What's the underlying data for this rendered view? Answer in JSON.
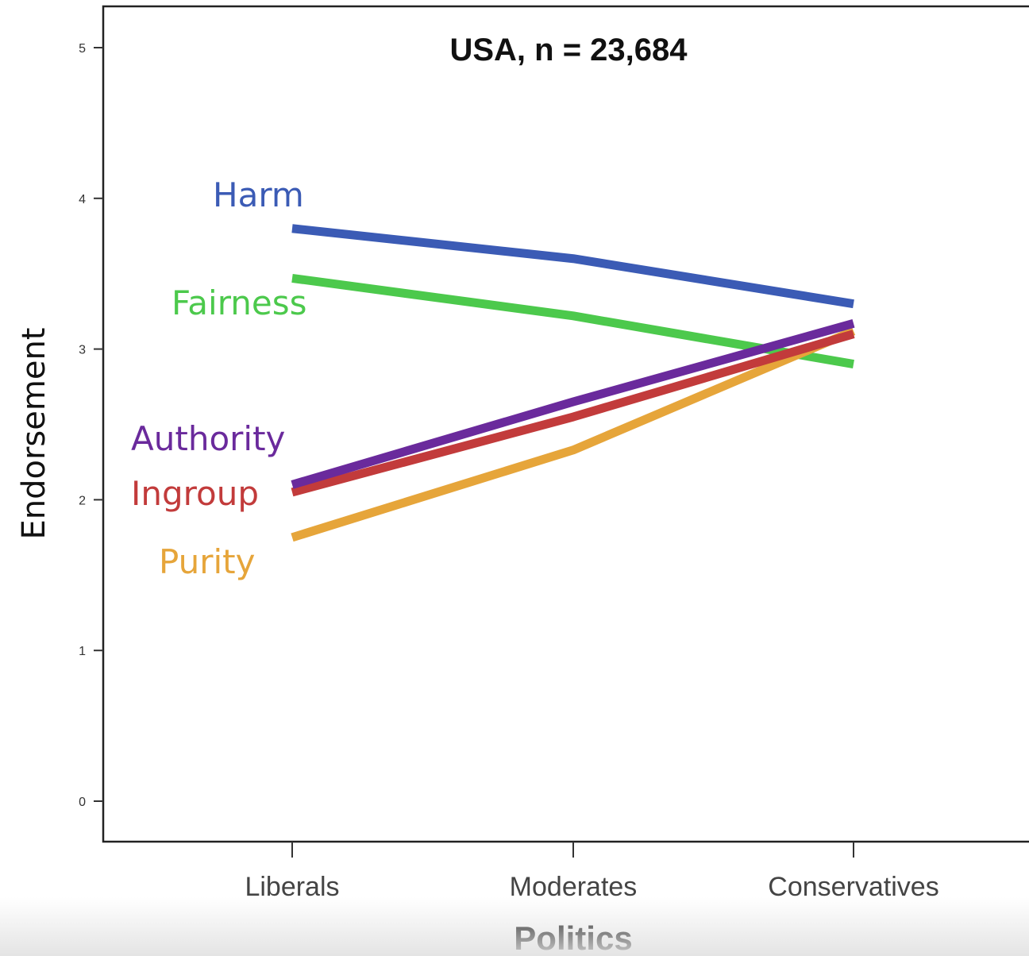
{
  "chart_data": {
    "type": "line",
    "title": "USA, n = 23,684",
    "xlabel": "Politics",
    "ylabel": "Endorsement",
    "categories": [
      "Liberals",
      "Moderates",
      "Conservatives"
    ],
    "ylim": [
      0,
      5
    ],
    "yticks": [
      "0",
      "1",
      "2",
      "3",
      "4",
      "5"
    ],
    "grid": false,
    "legend": "direct labels at left of lines",
    "series": [
      {
        "name": "Harm",
        "color": "#3b5bb5",
        "values": [
          3.8,
          3.6,
          3.3
        ]
      },
      {
        "name": "Fairness",
        "color": "#4cc94c",
        "values": [
          3.47,
          3.22,
          2.9
        ]
      },
      {
        "name": "Purity",
        "color": "#e6a53a",
        "values": [
          1.75,
          2.33,
          3.12
        ]
      },
      {
        "name": "Ingroup",
        "color": "#c23b3b",
        "values": [
          2.05,
          2.55,
          3.1
        ]
      },
      {
        "name": "Authority",
        "color": "#6a2a9c",
        "values": [
          2.1,
          2.65,
          3.17
        ]
      }
    ]
  }
}
